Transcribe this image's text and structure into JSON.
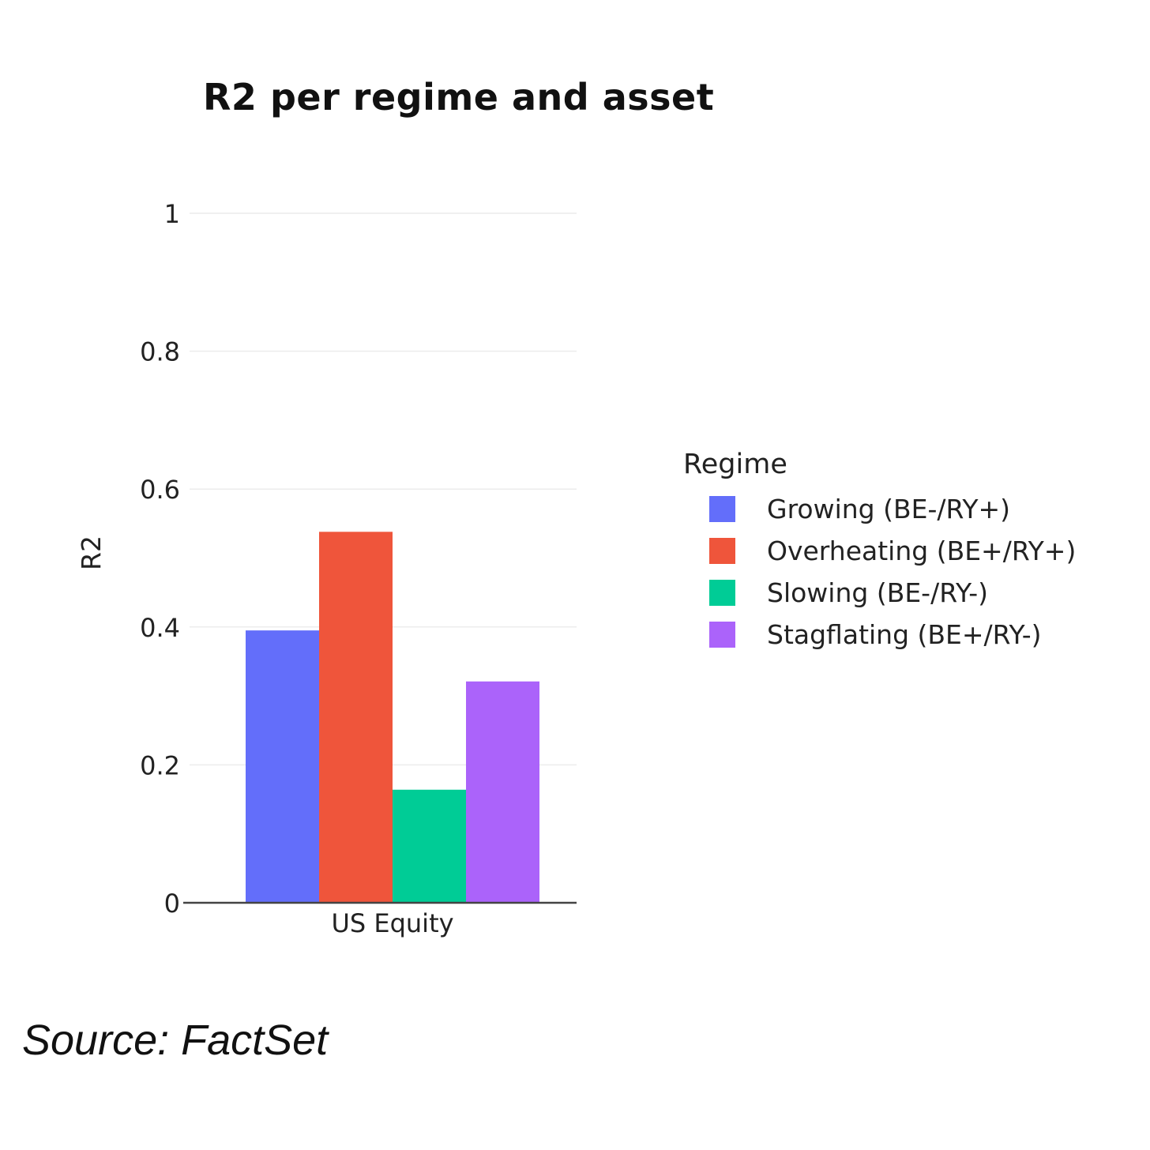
{
  "chart_data": {
    "type": "bar",
    "title": "R2 per regime and asset",
    "xlabel": "",
    "ylabel": "R2",
    "categories": [
      "US Equity"
    ],
    "series": [
      {
        "name": "Growing (BE-/RY+)",
        "values": [
          0.395
        ],
        "color": "#636efa"
      },
      {
        "name": "Overheating (BE+/RY+)",
        "values": [
          0.538
        ],
        "color": "#ef553b"
      },
      {
        "name": "Slowing (BE-/RY-)",
        "values": [
          0.164
        ],
        "color": "#00cc96"
      },
      {
        "name": "Stagflating (BE+/RY-)",
        "values": [
          0.321
        ],
        "color": "#ab63fa"
      }
    ],
    "ylim": [
      0,
      1
    ],
    "yticks": [
      0,
      0.2,
      0.4,
      0.6,
      0.8,
      1
    ],
    "ytick_labels": [
      "0",
      "0.2",
      "0.4",
      "0.6",
      "0.8",
      "1"
    ],
    "grid": true,
    "legend_title": "Regime",
    "legend_position": "right"
  },
  "source": "Source: FactSet"
}
